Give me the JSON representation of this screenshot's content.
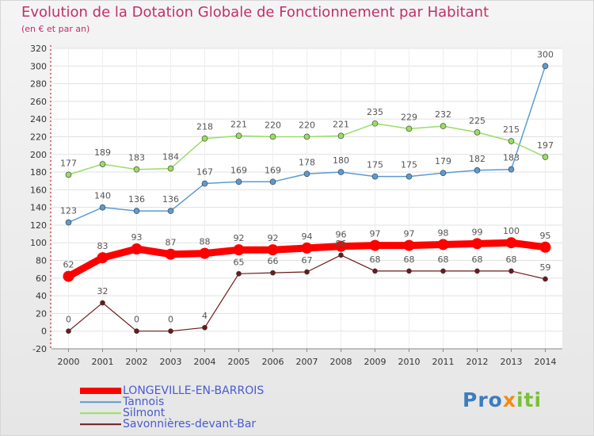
{
  "chart_data": {
    "type": "line",
    "title": "Evolution de la Dotation Globale de Fonctionnement par Habitant",
    "subtitle": "(en € et par an)",
    "xlabel": "",
    "ylabel": "",
    "categories": [
      "2000",
      "2001",
      "2002",
      "2003",
      "2004",
      "2005",
      "2006",
      "2007",
      "2008",
      "2009",
      "2010",
      "2011",
      "2012",
      "2013",
      "2014"
    ],
    "yticks": [
      -20,
      0,
      20,
      40,
      60,
      80,
      100,
      120,
      140,
      160,
      180,
      200,
      220,
      240,
      260,
      280,
      300,
      320
    ],
    "ylim": [
      -20,
      320
    ],
    "grid": true,
    "legend_position": "bottom-left",
    "series": [
      {
        "name": "LONGEVILLE-EN-BARROIS",
        "color": "#ff0000",
        "values": [
          62,
          83,
          93,
          87,
          88,
          92,
          92,
          94,
          96,
          97,
          97,
          98,
          99,
          100,
          95
        ]
      },
      {
        "name": "Tannois",
        "color": "#5c9bd1",
        "values": [
          123,
          140,
          136,
          136,
          167,
          169,
          169,
          178,
          180,
          175,
          175,
          179,
          182,
          183,
          300
        ]
      },
      {
        "name": "Silmont",
        "color": "#99dd66",
        "values": [
          177,
          189,
          183,
          184,
          218,
          221,
          220,
          220,
          221,
          235,
          229,
          232,
          225,
          215,
          197
        ]
      },
      {
        "name": "Savonnières-devant-Bar",
        "color": "#6b1a1a",
        "values": [
          0,
          32,
          0,
          0,
          4,
          65,
          66,
          67,
          86,
          68,
          68,
          68,
          68,
          68,
          59
        ]
      }
    ]
  },
  "logo": {
    "part1": "Pro",
    "part2": "x",
    "part3": "iti"
  }
}
